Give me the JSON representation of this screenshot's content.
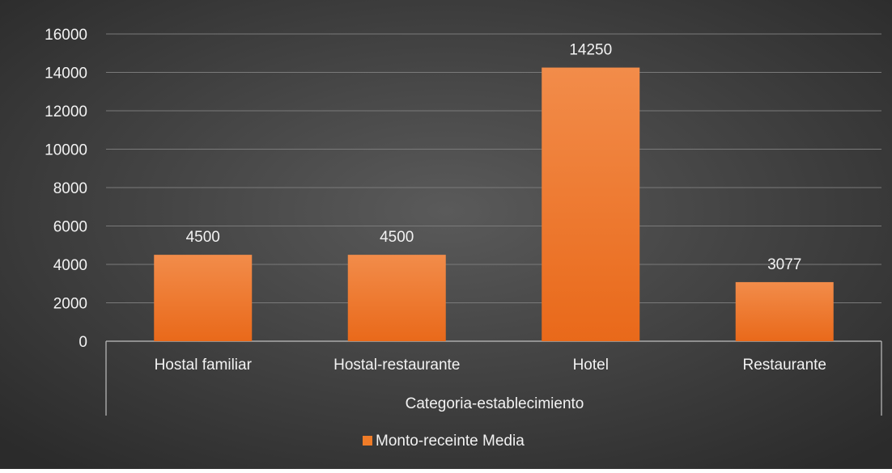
{
  "chart_data": {
    "type": "bar",
    "title": "",
    "xlabel": "Categoria-establecimiento",
    "ylabel": "",
    "categories": [
      "Hostal familiar",
      "Hostal-restaurante",
      "Hotel",
      "Restaurante"
    ],
    "series": [
      {
        "name": "Monto-receinte Media",
        "values": [
          4500,
          4500,
          14250,
          3077
        ],
        "color": "#f07c28"
      }
    ],
    "ylim": [
      0,
      16000
    ],
    "yticks": [
      "0",
      "2000",
      "4000",
      "6000",
      "8000",
      "10000",
      "12000",
      "14000",
      "16000"
    ],
    "grid": true,
    "legend_position": "bottom",
    "colors": {
      "background_center": "#5a5a5a",
      "background_edge": "#2b2b2b",
      "text": "#f2f2f2",
      "gridline": "#7a7a7a",
      "axis": "#bfbfbf"
    }
  }
}
